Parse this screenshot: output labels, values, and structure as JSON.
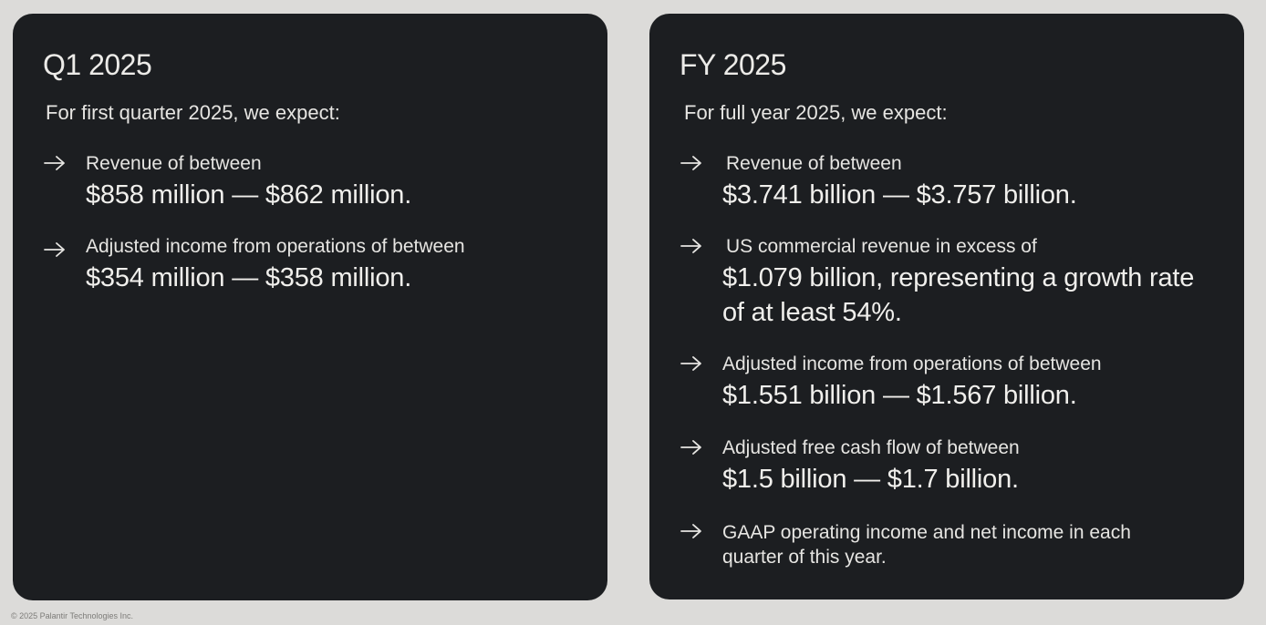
{
  "q1": {
    "title": "Q1 2025",
    "intro": "For first quarter 2025, we expect:",
    "items": [
      {
        "label": "Revenue of between",
        "value": "$858 million — $862 million."
      },
      {
        "label": "Adjusted income from operations of between",
        "value": "$354 million — $358 million."
      }
    ]
  },
  "fy": {
    "title": "FY 2025",
    "intro": "For full year 2025, we expect:",
    "items": [
      {
        "label": "Revenue of between",
        "value": "$3.741 billion — $3.757 billion."
      },
      {
        "label": "US commercial revenue in excess of",
        "value": "$1.079 billion, representing a growth rate of at least 54%."
      },
      {
        "label": "Adjusted income from operations of between",
        "value": "$1.551 billion — $1.567 billion."
      },
      {
        "label": "Adjusted free cash flow of between",
        "value": "$1.5 billion — $1.7 billion."
      },
      {
        "text": "GAAP operating income and net income in each quarter of this year."
      }
    ]
  },
  "footer": "© 2025 Palantir Technologies Inc.",
  "colors": {
    "background": "#dcdbd9",
    "card": "#1c1e21",
    "text": "#e8e7e4"
  },
  "icons": {
    "bullet": "arrow-right-icon"
  }
}
